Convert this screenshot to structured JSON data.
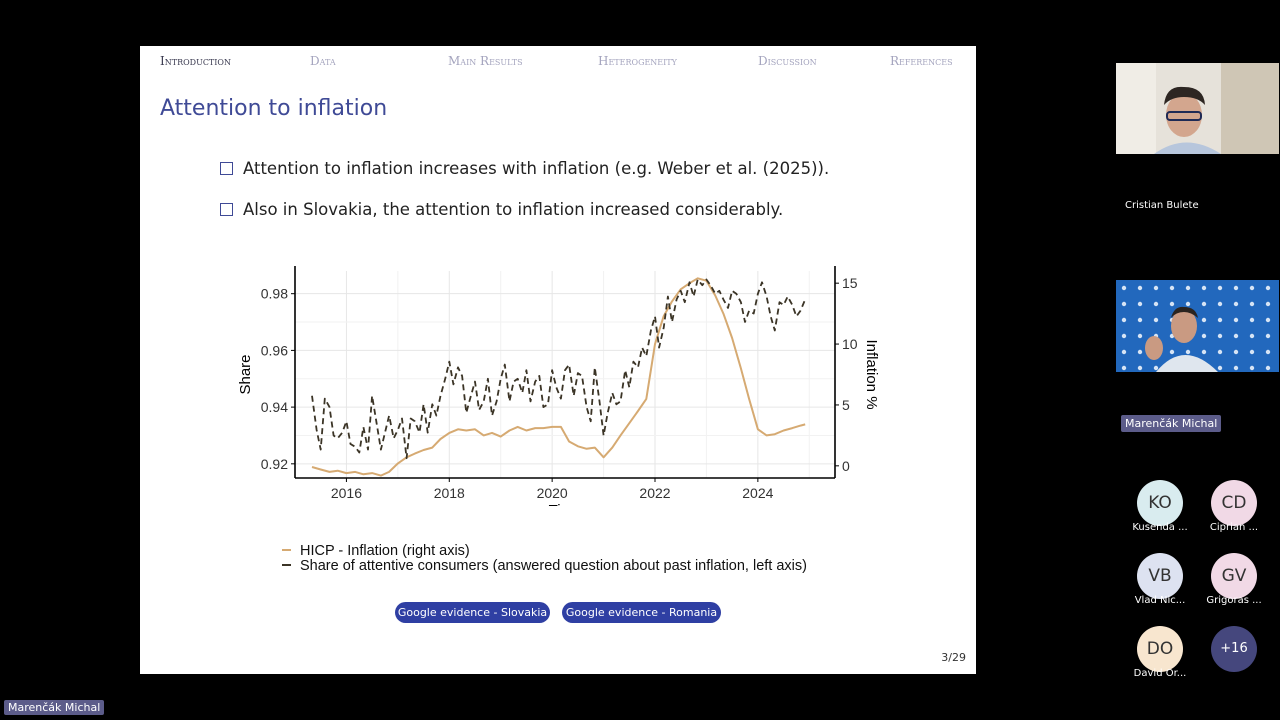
{
  "nav": {
    "items": [
      "Introduction",
      "Data",
      "Main Results",
      "Heterogeneity",
      "Discussion",
      "References"
    ],
    "active": "Introduction"
  },
  "slide": {
    "title": "Attention to inflation",
    "bullets": [
      "Attention to inflation increases with inflation (e.g. Weber et al. (2025)).",
      "Also in Slovakia, the attention to inflation increased considerably."
    ],
    "buttons": [
      "Google evidence - Slovakia",
      "Google evidence - Romania"
    ],
    "page": "3/29"
  },
  "legend": {
    "items": [
      "HICP - Inflation (right axis)",
      "Share of attentive consumers (answered question about past inflation, left axis)"
    ]
  },
  "chart_data": {
    "type": "line",
    "xlabel": "Time",
    "ylabel": "Share",
    "y2label": "Inflation %",
    "xlim": [
      2015.0,
      2025.5
    ],
    "ylim": [
      0.915,
      0.988
    ],
    "y2lim": [
      -1.0,
      16.0
    ],
    "xticks": [
      "2016",
      "2018",
      "2020",
      "2022",
      "2024"
    ],
    "yticks": [
      "0.92",
      "0.94",
      "0.96",
      "0.98"
    ],
    "y2ticks": [
      "0",
      "5",
      "10",
      "15"
    ],
    "grid": true,
    "colors": {
      "inflation": "#d6aa72",
      "share": "#3b3426"
    },
    "series": [
      {
        "name": "HICP - Inflation (right axis)",
        "axis": "right",
        "style": "solid",
        "x": [
          2015.33,
          2015.5,
          2015.67,
          2015.83,
          2016.0,
          2016.17,
          2016.33,
          2016.5,
          2016.67,
          2016.83,
          2017.0,
          2017.17,
          2017.33,
          2017.5,
          2017.67,
          2017.83,
          2018.0,
          2018.17,
          2018.33,
          2018.5,
          2018.67,
          2018.83,
          2019.0,
          2019.17,
          2019.33,
          2019.5,
          2019.67,
          2019.83,
          2020.0,
          2020.17,
          2020.33,
          2020.5,
          2020.67,
          2020.83,
          2021.0,
          2021.17,
          2021.33,
          2021.5,
          2021.67,
          2021.83,
          2022.0,
          2022.17,
          2022.33,
          2022.5,
          2022.67,
          2022.83,
          2023.0,
          2023.17,
          2023.33,
          2023.5,
          2023.67,
          2023.83,
          2024.0,
          2024.17,
          2024.33,
          2024.5,
          2024.67,
          2024.83,
          2024.92
        ],
        "values": [
          -0.1,
          -0.3,
          -0.5,
          -0.4,
          -0.6,
          -0.5,
          -0.7,
          -0.6,
          -0.8,
          -0.5,
          0.2,
          0.7,
          1.0,
          1.3,
          1.5,
          2.2,
          2.7,
          3.0,
          2.9,
          3.0,
          2.5,
          2.7,
          2.4,
          2.9,
          3.2,
          2.9,
          3.1,
          3.1,
          3.2,
          3.2,
          2.0,
          1.6,
          1.4,
          1.5,
          0.7,
          1.5,
          2.5,
          3.5,
          4.5,
          5.5,
          10.0,
          12.3,
          13.5,
          14.5,
          15.0,
          15.4,
          15.2,
          14.0,
          12.5,
          10.5,
          8.0,
          5.5,
          3.0,
          2.5,
          2.6,
          2.9,
          3.1,
          3.3,
          3.4
        ]
      },
      {
        "name": "Share of attentive consumers (answered question about past inflation, left axis)",
        "axis": "left",
        "style": "dashed",
        "x": [
          2015.33,
          2015.42,
          2015.5,
          2015.58,
          2015.67,
          2015.75,
          2015.83,
          2015.92,
          2016.0,
          2016.08,
          2016.17,
          2016.25,
          2016.33,
          2016.42,
          2016.5,
          2016.58,
          2016.67,
          2016.75,
          2016.83,
          2016.92,
          2017.0,
          2017.08,
          2017.17,
          2017.25,
          2017.33,
          2017.42,
          2017.5,
          2017.58,
          2017.67,
          2017.75,
          2017.83,
          2017.92,
          2018.0,
          2018.08,
          2018.17,
          2018.25,
          2018.33,
          2018.42,
          2018.5,
          2018.58,
          2018.67,
          2018.75,
          2018.83,
          2018.92,
          2019.0,
          2019.08,
          2019.17,
          2019.25,
          2019.33,
          2019.42,
          2019.5,
          2019.58,
          2019.67,
          2019.75,
          2019.83,
          2019.92,
          2020.0,
          2020.08,
          2020.17,
          2020.25,
          2020.33,
          2020.42,
          2020.5,
          2020.58,
          2020.67,
          2020.75,
          2020.83,
          2020.92,
          2021.0,
          2021.08,
          2021.17,
          2021.25,
          2021.33,
          2021.42,
          2021.5,
          2021.58,
          2021.67,
          2021.75,
          2021.83,
          2021.92,
          2022.0,
          2022.08,
          2022.17,
          2022.25,
          2022.33,
          2022.42,
          2022.5,
          2022.58,
          2022.67,
          2022.75,
          2022.83,
          2022.92,
          2023.0,
          2023.08,
          2023.17,
          2023.25,
          2023.33,
          2023.42,
          2023.5,
          2023.58,
          2023.67,
          2023.75,
          2023.83,
          2023.92,
          2024.0,
          2024.08,
          2024.17,
          2024.25,
          2024.33,
          2024.42,
          2024.5,
          2024.58,
          2024.67,
          2024.75,
          2024.83,
          2024.92
        ],
        "values": [
          0.944,
          0.932,
          0.925,
          0.943,
          0.94,
          0.93,
          0.929,
          0.931,
          0.935,
          0.927,
          0.926,
          0.924,
          0.933,
          0.925,
          0.944,
          0.935,
          0.925,
          0.931,
          0.937,
          0.929,
          0.932,
          0.936,
          0.922,
          0.936,
          0.935,
          0.931,
          0.941,
          0.931,
          0.941,
          0.937,
          0.944,
          0.95,
          0.956,
          0.948,
          0.954,
          0.951,
          0.938,
          0.944,
          0.949,
          0.939,
          0.942,
          0.95,
          0.937,
          0.942,
          0.95,
          0.955,
          0.942,
          0.949,
          0.95,
          0.945,
          0.953,
          0.942,
          0.949,
          0.951,
          0.94,
          0.941,
          0.953,
          0.947,
          0.943,
          0.953,
          0.955,
          0.944,
          0.952,
          0.951,
          0.94,
          0.935,
          0.954,
          0.942,
          0.93,
          0.938,
          0.945,
          0.941,
          0.942,
          0.953,
          0.947,
          0.956,
          0.954,
          0.961,
          0.958,
          0.967,
          0.972,
          0.961,
          0.968,
          0.979,
          0.97,
          0.978,
          0.981,
          0.977,
          0.984,
          0.979,
          0.985,
          0.983,
          0.985,
          0.983,
          0.98,
          0.981,
          0.978,
          0.975,
          0.981,
          0.98,
          0.977,
          0.97,
          0.974,
          0.973,
          0.98,
          0.984,
          0.979,
          0.972,
          0.967,
          0.977,
          0.976,
          0.979,
          0.976,
          0.972,
          0.974,
          0.978
        ]
      }
    ]
  },
  "participants": {
    "video1": {
      "name": "Cristian Bulete"
    },
    "video2": {
      "name": "Marenčák Michal"
    },
    "avatars": [
      {
        "initials": "KO",
        "name": "Kusenda ...",
        "color": "#d9ecef"
      },
      {
        "initials": "CD",
        "name": "Ciprian ...",
        "color": "#f1d9e6"
      },
      {
        "initials": "VB",
        "name": "Vlad Nic...",
        "color": "#dde2f1"
      },
      {
        "initials": "GV",
        "name": "Grigoras ...",
        "color": "#f1d9e6"
      },
      {
        "initials": "DO",
        "name": "David Or...",
        "color": "#f8e6cf"
      }
    ],
    "more": "+16",
    "more_color": "#45477d"
  },
  "bottom": {
    "speaker_label": "Marenčák Michal"
  }
}
